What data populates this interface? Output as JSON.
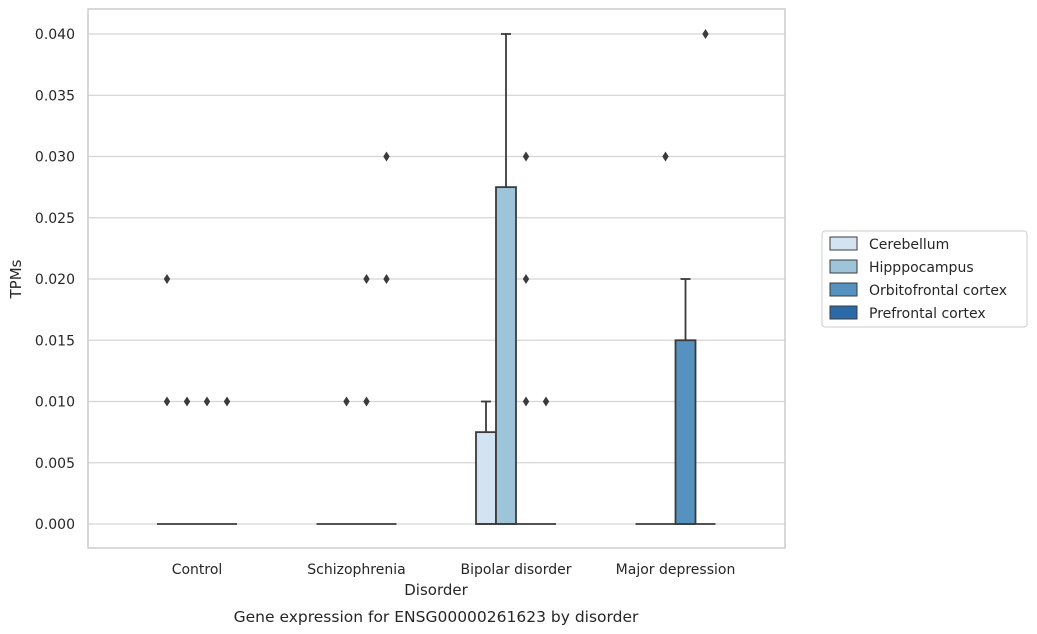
{
  "chart_data": {
    "type": "box",
    "title": "",
    "caption": "Gene expression for ENSG00000261623 by disorder",
    "xlabel": "Disorder",
    "ylabel": "TPMs",
    "ylim": [
      -0.002,
      0.042
    ],
    "yticks": [
      "0.000",
      "0.005",
      "0.010",
      "0.015",
      "0.020",
      "0.025",
      "0.030",
      "0.035",
      "0.040"
    ],
    "ytick_values": [
      0,
      0.005,
      0.01,
      0.015,
      0.02,
      0.025,
      0.03,
      0.035,
      0.04
    ],
    "grid": "horizontal",
    "legend_position": "right",
    "categories": [
      "Control",
      "Schizophrenia",
      "Bipolar disorder",
      "Major depression"
    ],
    "series": [
      {
        "name": "Cerebellum",
        "color": "#d4e3f1",
        "boxes": [
          {
            "q1": 0,
            "median": 0,
            "q3": 0,
            "whisker_low": 0,
            "whisker_high": 0,
            "outliers": [
              0.02,
              0.01
            ]
          },
          {
            "q1": 0,
            "median": 0,
            "q3": 0,
            "whisker_low": 0,
            "whisker_high": 0,
            "outliers": []
          },
          {
            "q1": 0,
            "median": 0,
            "q3": 0.0075,
            "whisker_low": 0,
            "whisker_high": 0.01,
            "outliers": []
          },
          {
            "q1": 0,
            "median": 0,
            "q3": 0,
            "whisker_low": 0,
            "whisker_high": 0,
            "outliers": []
          }
        ]
      },
      {
        "name": "Hipppocampus",
        "color": "#9dc4d9",
        "boxes": [
          {
            "q1": 0,
            "median": 0,
            "q3": 0,
            "whisker_low": 0,
            "whisker_high": 0,
            "outliers": [
              0.01
            ]
          },
          {
            "q1": 0,
            "median": 0,
            "q3": 0,
            "whisker_low": 0,
            "whisker_high": 0,
            "outliers": [
              0.01
            ]
          },
          {
            "q1": 0,
            "median": 0,
            "q3": 0.0275,
            "whisker_low": 0,
            "whisker_high": 0.04,
            "outliers": []
          },
          {
            "q1": 0,
            "median": 0,
            "q3": 0,
            "whisker_low": 0,
            "whisker_high": 0,
            "outliers": [
              0.03
            ]
          }
        ]
      },
      {
        "name": "Orbitofrontal cortex",
        "color": "#5592bf",
        "boxes": [
          {
            "q1": 0,
            "median": 0,
            "q3": 0,
            "whisker_low": 0,
            "whisker_high": 0,
            "outliers": [
              0.01
            ]
          },
          {
            "q1": 0,
            "median": 0,
            "q3": 0,
            "whisker_low": 0,
            "whisker_high": 0,
            "outliers": [
              0.02,
              0.01
            ]
          },
          {
            "q1": 0,
            "median": 0,
            "q3": 0,
            "whisker_low": 0,
            "whisker_high": 0,
            "outliers": [
              0.03,
              0.02,
              0.01
            ]
          },
          {
            "q1": 0,
            "median": 0,
            "q3": 0.015,
            "whisker_low": 0,
            "whisker_high": 0.02,
            "outliers": []
          }
        ]
      },
      {
        "name": "Prefrontal cortex",
        "color": "#2b6aa8",
        "boxes": [
          {
            "q1": 0,
            "median": 0,
            "q3": 0,
            "whisker_low": 0,
            "whisker_high": 0,
            "outliers": [
              0.01
            ]
          },
          {
            "q1": 0,
            "median": 0,
            "q3": 0,
            "whisker_low": 0,
            "whisker_high": 0,
            "outliers": [
              0.03,
              0.02
            ]
          },
          {
            "q1": 0,
            "median": 0,
            "q3": 0,
            "whisker_low": 0,
            "whisker_high": 0,
            "outliers": [
              0.01
            ]
          },
          {
            "q1": 0,
            "median": 0,
            "q3": 0,
            "whisker_low": 0,
            "whisker_high": 0,
            "outliers": [
              0.04
            ]
          }
        ]
      }
    ]
  }
}
